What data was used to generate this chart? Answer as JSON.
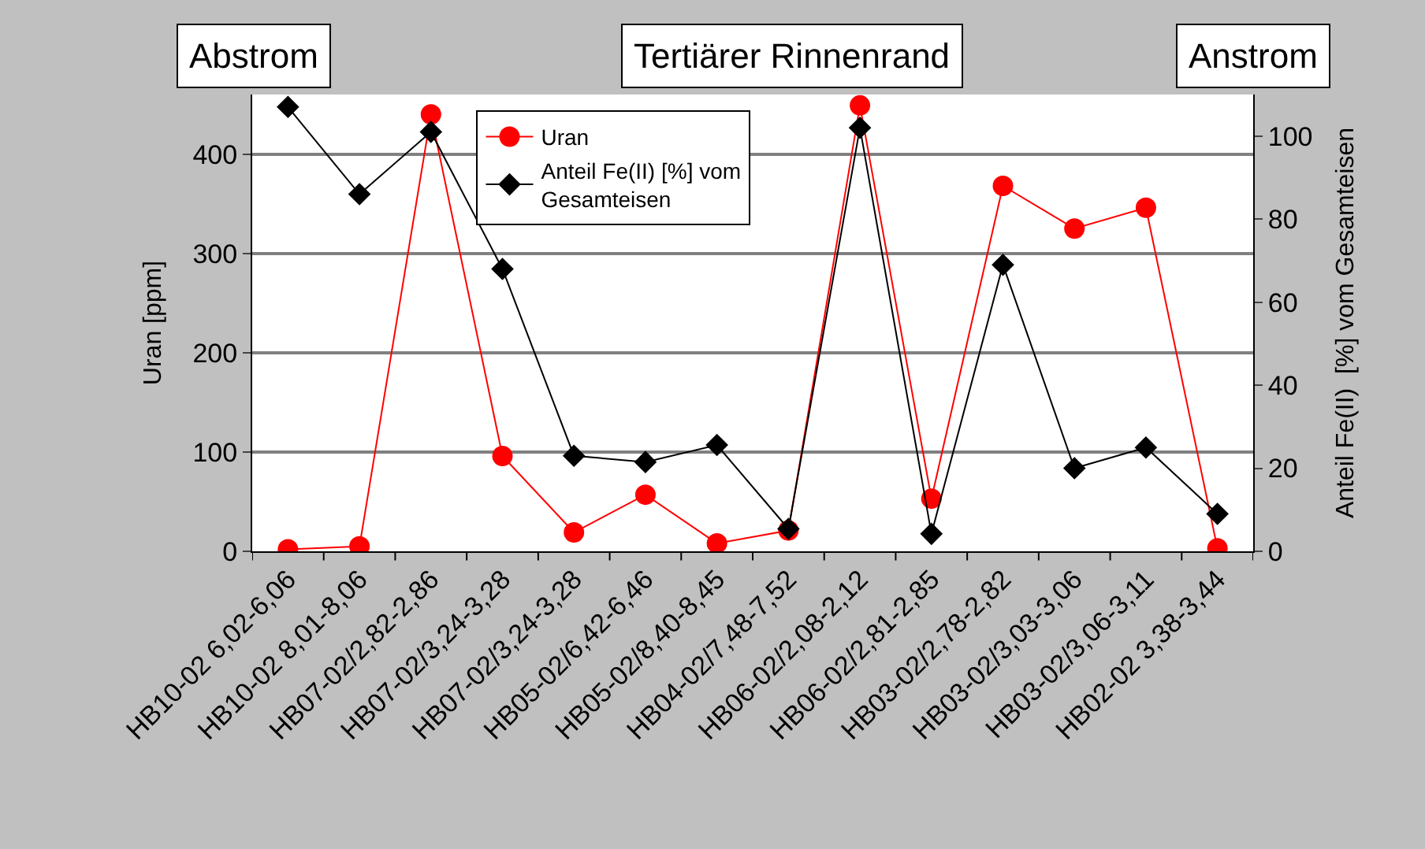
{
  "chart_data": {
    "type": "line",
    "categories": [
      "HB10-02 6,02-6,06",
      "HB10-02 8,01-8,06",
      "HB07-02/2,82-2,86",
      "HB07-02/3,24-3,28",
      "HB07-02/3,24-3,28",
      "HB05-02/6,42-6,46",
      "HB05-02/8,40-8,45",
      "HB04-02/7,48-7,52",
      "HB06-02/2,08-2,12",
      "HB06-02/2,81-2,85",
      "HB03-02/2,78-2,82",
      "HB03-02/3,03-3,06",
      "HB03-02/3,06-3,11",
      "HB02-02 3,38-3,44"
    ],
    "series": [
      {
        "name": "Uran",
        "color": "#ff0000",
        "marker": "circle",
        "values": [
          2,
          5,
          440,
          96,
          19,
          57,
          8,
          21,
          449,
          53,
          368,
          325,
          346,
          3
        ]
      },
      {
        "name": "Anteil Fe(II) [%] vom Gesamteisen",
        "color": "#000000",
        "marker": "diamond",
        "axis": "y2",
        "values": [
          107,
          86,
          101,
          68,
          23,
          21.5,
          25.6,
          5.4,
          102,
          4.2,
          69,
          20,
          25,
          9
        ]
      }
    ],
    "ylabel": "Uran [ppm]",
    "y2label": "Anteil Fe(II)  [%] vom Gesamteisen",
    "ylim": [
      0,
      460
    ],
    "yticks": [
      0,
      100,
      200,
      300,
      400
    ],
    "y2lim": [
      0,
      110
    ],
    "y2ticks": [
      0,
      20,
      40,
      60,
      80,
      100
    ],
    "grid": "y",
    "legend": "top left",
    "line_style": "solid",
    "annotations": [
      "Abstrom",
      "Tertiärer Rinnenrand",
      "Anstrom"
    ]
  }
}
